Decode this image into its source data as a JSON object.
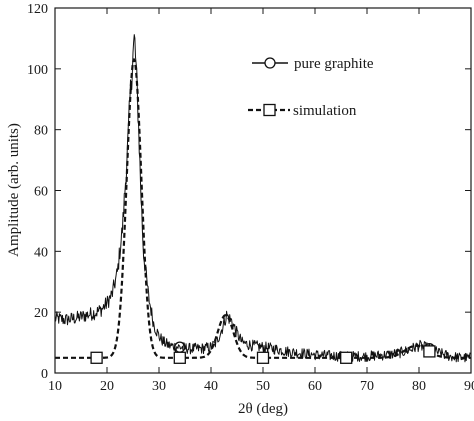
{
  "chart_data": {
    "type": "line",
    "xlabel": "2θ (deg)",
    "ylabel": "Amplitude (arb. units)",
    "xlim": [
      10,
      90
    ],
    "ylim": [
      0,
      120
    ],
    "xticks": [
      10,
      20,
      30,
      40,
      50,
      60,
      70,
      80,
      90
    ],
    "yticks": [
      0,
      20,
      40,
      60,
      80,
      100,
      120
    ],
    "grid": false,
    "legend_position": "top-right",
    "series": [
      {
        "name": "pure graphite",
        "marker": "circle",
        "line_style": "solid",
        "color": "#111111",
        "noise_amplitude": 2.5,
        "x": [
          10,
          12,
          14,
          16,
          18,
          19,
          20,
          21,
          22,
          23,
          24,
          24.5,
          25,
          25.3,
          25.6,
          26,
          26.5,
          27,
          28,
          29,
          30,
          31,
          32,
          34,
          36,
          38,
          40,
          41,
          42,
          43,
          44,
          45,
          46,
          48,
          50,
          52,
          55,
          60,
          65,
          70,
          74,
          76,
          78,
          80,
          82,
          84,
          86,
          88,
          90
        ],
        "y": [
          18,
          17.5,
          18,
          19,
          20,
          21,
          23,
          26,
          33,
          48,
          75,
          92,
          105,
          110,
          100,
          85,
          60,
          40,
          25,
          16,
          12,
          10,
          9,
          8.5,
          8,
          8,
          8.5,
          10,
          14,
          19,
          17,
          13,
          10,
          9,
          8.5,
          8,
          7,
          6,
          5.5,
          5.5,
          6,
          6.5,
          7.5,
          9,
          8,
          6.5,
          5.5,
          5,
          5
        ],
        "marker_x": [
          34,
          82
        ]
      },
      {
        "name": "simulation",
        "marker": "square",
        "line_style": "dashed",
        "color": "#111111",
        "baseline": 5,
        "peaks": [
          {
            "center": 25.2,
            "height": 98,
            "width": 1.4
          },
          {
            "center": 42.8,
            "height": 14,
            "width": 1.5
          },
          {
            "center": 79.5,
            "height": 4,
            "width": 2.2
          }
        ],
        "marker_x": [
          18,
          34,
          50,
          66,
          82
        ]
      }
    ]
  }
}
